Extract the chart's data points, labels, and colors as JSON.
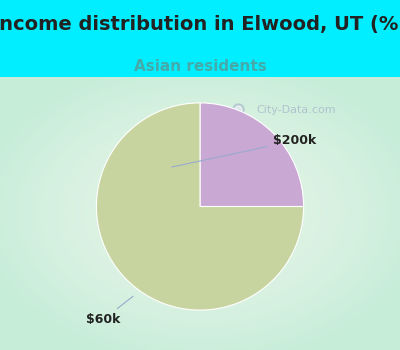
{
  "title": "Income distribution in Elwood, UT (%)",
  "subtitle": "Asian residents",
  "bg_color": "#00EEFF",
  "chart_bg_color": "#e8f5ee",
  "slices": [
    {
      "label": "$200k",
      "value": 25,
      "color": "#c9a8d4"
    },
    {
      "label": "$60k",
      "value": 75,
      "color": "#c8d4a0"
    }
  ],
  "title_fontsize": 14,
  "title_color": "#222222",
  "subtitle_fontsize": 11,
  "subtitle_color": "#44aaaa",
  "watermark": "City-Data.com",
  "watermark_color": "#aabbcc",
  "arrow_color": "#99aacc",
  "label_fontsize": 9
}
